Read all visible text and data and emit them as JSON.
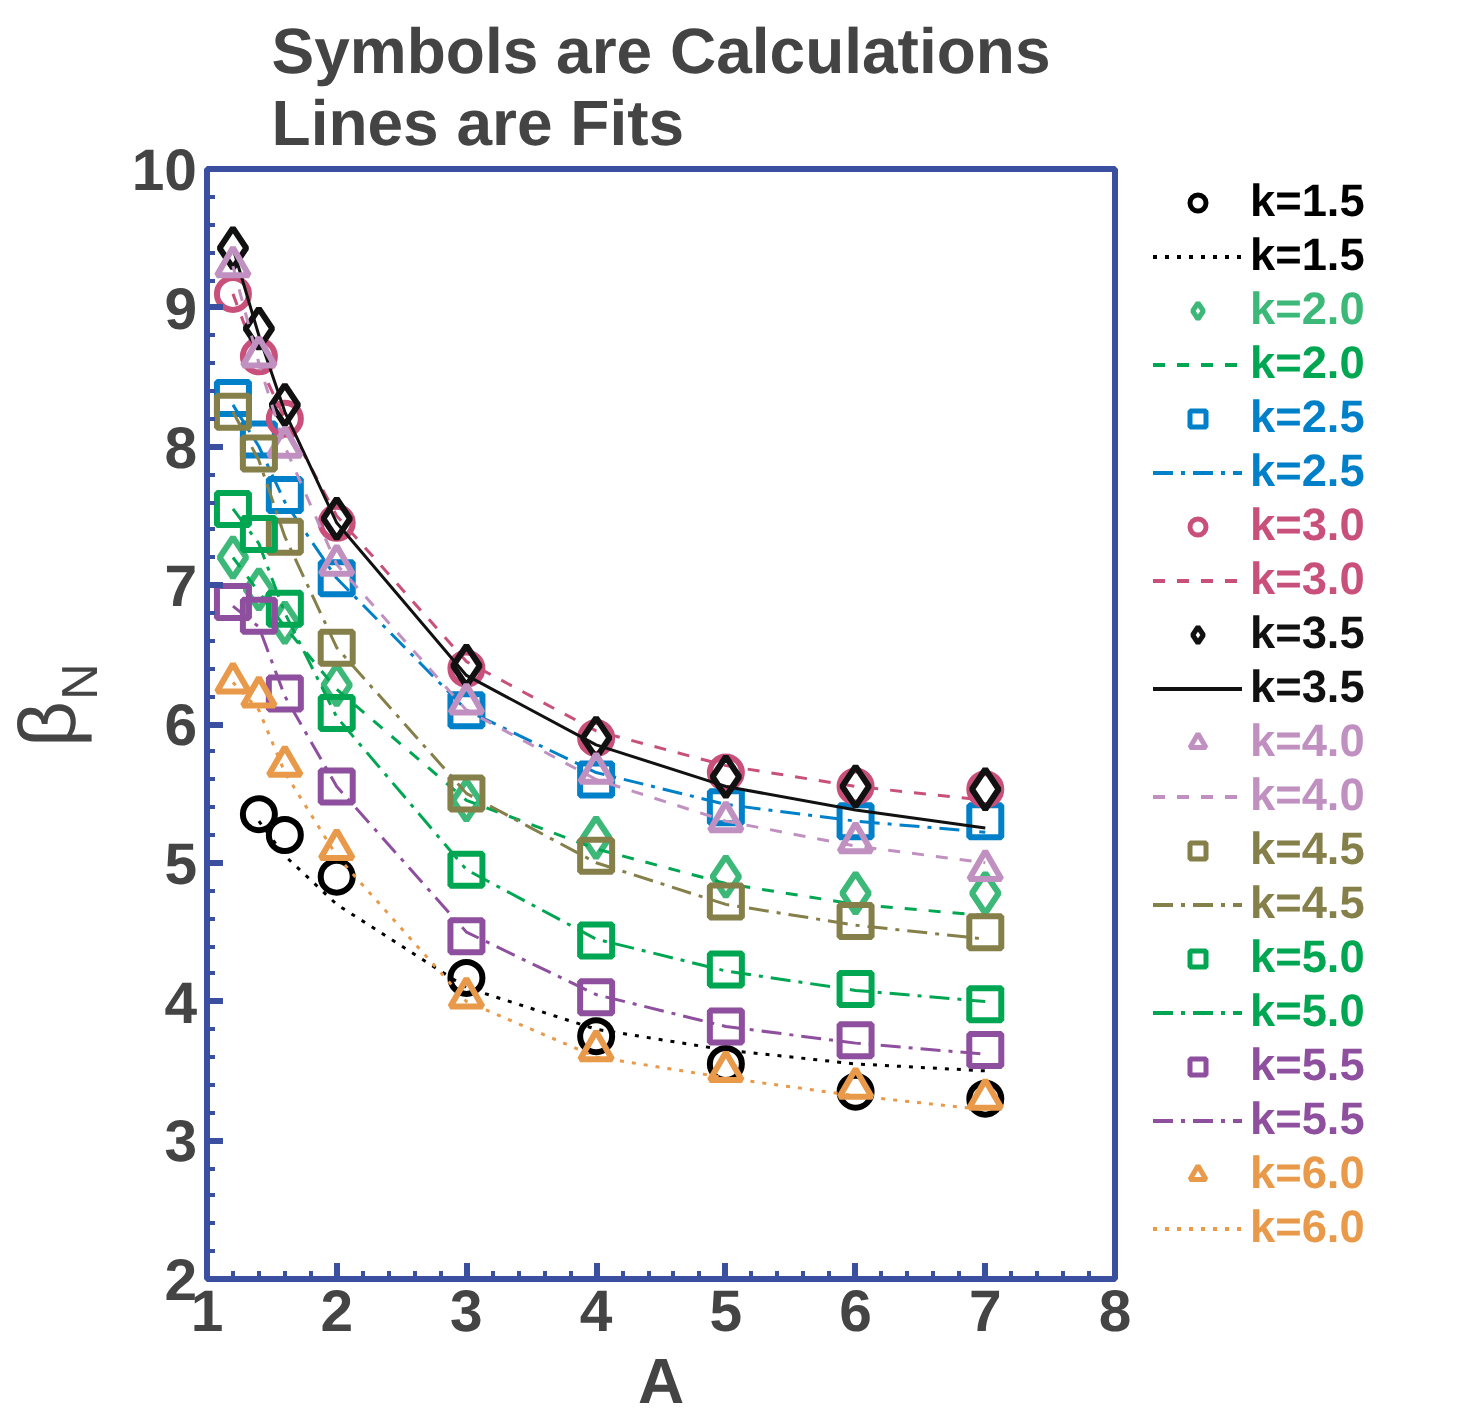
{
  "chart_data": {
    "type": "scatter",
    "title": "Symbols are Calculations\nLines are Fits",
    "xlabel": "A",
    "ylabel": "β$_{N}$",
    "x": [
      1.2,
      1.4,
      1.6,
      2,
      3,
      4,
      5,
      6,
      7
    ],
    "xlim": [
      1,
      8
    ],
    "ylim": [
      2,
      10
    ],
    "xticks": [
      1,
      2,
      3,
      4,
      5,
      6,
      7,
      8
    ],
    "yticks": [
      2,
      3,
      4,
      5,
      6,
      7,
      8,
      9,
      10
    ],
    "legend": "right",
    "series": [
      {
        "name": "k=1.5",
        "type": "scatter",
        "marker": "circle",
        "color": "#000000",
        "values": [
          null,
          5.35,
          5.2,
          4.9,
          4.17,
          3.75,
          3.55,
          3.35,
          3.3
        ]
      },
      {
        "name": "k=1.5",
        "type": "line",
        "marker": "none",
        "line_style": "dotted",
        "color": "#000000",
        "values": [
          null,
          5.3,
          5.05,
          4.7,
          4.1,
          3.8,
          3.65,
          3.55,
          3.5
        ]
      },
      {
        "name": "k=2.0",
        "type": "scatter",
        "marker": "diamond",
        "color": "#3cb878",
        "values": [
          7.2,
          6.97,
          6.73,
          6.28,
          5.45,
          5.18,
          4.9,
          4.78,
          4.78
        ]
      },
      {
        "name": "k=2.0",
        "type": "line",
        "marker": "none",
        "line_style": "dashed",
        "color": "#00a651",
        "values": [
          7.2,
          6.95,
          6.7,
          6.25,
          5.45,
          5.1,
          4.85,
          4.7,
          4.62
        ]
      },
      {
        "name": "k=2.5",
        "type": "scatter",
        "marker": "square",
        "color": "#0080c8",
        "values": [
          8.35,
          8.05,
          7.65,
          7.05,
          6.1,
          5.6,
          5.4,
          5.3,
          5.3
        ]
      },
      {
        "name": "k=2.5",
        "type": "line",
        "marker": "none",
        "line_style": "dashdot",
        "color": "#0080c8",
        "values": [
          8.3,
          8.0,
          7.6,
          7.05,
          6.1,
          5.65,
          5.42,
          5.3,
          5.22
        ]
      },
      {
        "name": "k=3.0",
        "type": "scatter",
        "marker": "circle",
        "color": "#c8507a",
        "values": [
          9.1,
          8.65,
          8.2,
          7.45,
          6.4,
          5.9,
          5.65,
          5.55,
          5.53
        ]
      },
      {
        "name": "k=3.0",
        "type": "line",
        "marker": "none",
        "line_style": "dashed",
        "color": "#c8507a",
        "values": [
          9.1,
          8.6,
          8.2,
          7.5,
          6.45,
          5.95,
          5.7,
          5.55,
          5.45
        ]
      },
      {
        "name": "k=3.5",
        "type": "scatter",
        "marker": "diamond",
        "color": "#111111",
        "values": [
          9.43,
          8.85,
          8.3,
          7.48,
          6.42,
          5.9,
          5.62,
          5.55,
          5.53
        ]
      },
      {
        "name": "k=3.5",
        "type": "line",
        "marker": "none",
        "line_style": "solid",
        "color": "#111111",
        "values": [
          9.43,
          8.8,
          8.25,
          7.45,
          6.35,
          5.85,
          5.55,
          5.38,
          5.25
        ]
      },
      {
        "name": "k=4.0",
        "type": "scatter",
        "marker": "triangle",
        "color": "#c090c0",
        "values": [
          9.3,
          8.65,
          8.0,
          7.15,
          6.15,
          5.65,
          5.3,
          5.15,
          4.95
        ]
      },
      {
        "name": "k=4.0",
        "type": "line",
        "marker": "none",
        "line_style": "dashed",
        "color": "#c090c0",
        "values": [
          9.3,
          8.6,
          8.0,
          7.15,
          6.1,
          5.6,
          5.3,
          5.12,
          5.0
        ]
      },
      {
        "name": "k=4.5",
        "type": "scatter",
        "marker": "square",
        "color": "#857f4a",
        "values": [
          8.25,
          7.95,
          7.35,
          6.55,
          5.5,
          5.05,
          4.72,
          4.58,
          4.5
        ]
      },
      {
        "name": "k=4.5",
        "type": "line",
        "marker": "none",
        "line_style": "dashdot",
        "color": "#857f4a",
        "values": [
          8.25,
          7.9,
          7.35,
          6.55,
          5.5,
          5.0,
          4.7,
          4.55,
          4.45
        ]
      },
      {
        "name": "k=5.0",
        "type": "scatter",
        "marker": "square",
        "color": "#00a651",
        "values": [
          7.55,
          7.37,
          6.83,
          6.08,
          4.95,
          4.44,
          4.23,
          4.09,
          3.98
        ]
      },
      {
        "name": "k=5.0",
        "type": "line",
        "marker": "none",
        "line_style": "dashdot",
        "color": "#00a651",
        "values": [
          7.55,
          7.3,
          6.8,
          6.05,
          4.95,
          4.45,
          4.22,
          4.08,
          4.0
        ]
      },
      {
        "name": "k=5.5",
        "type": "scatter",
        "marker": "square",
        "color": "#8e4f9e",
        "values": [
          6.88,
          6.78,
          6.22,
          5.55,
          4.47,
          4.03,
          3.82,
          3.72,
          3.65
        ]
      },
      {
        "name": "k=5.5",
        "type": "line",
        "marker": "none",
        "line_style": "dashdot",
        "color": "#8e4f9e",
        "values": [
          6.85,
          6.7,
          6.2,
          5.55,
          4.5,
          4.05,
          3.82,
          3.7,
          3.62
        ]
      },
      {
        "name": "k=6.0",
        "type": "scatter",
        "marker": "triangle",
        "color": "#e89a4a",
        "values": [
          6.3,
          6.2,
          5.7,
          5.1,
          4.03,
          3.65,
          3.5,
          3.38,
          3.3
        ]
      },
      {
        "name": "k=6.0",
        "type": "line",
        "marker": "none",
        "line_style": "dotted",
        "color": "#e89a4a",
        "values": [
          6.3,
          6.1,
          5.65,
          5.05,
          4.0,
          3.6,
          3.45,
          3.32,
          3.22
        ]
      }
    ]
  }
}
